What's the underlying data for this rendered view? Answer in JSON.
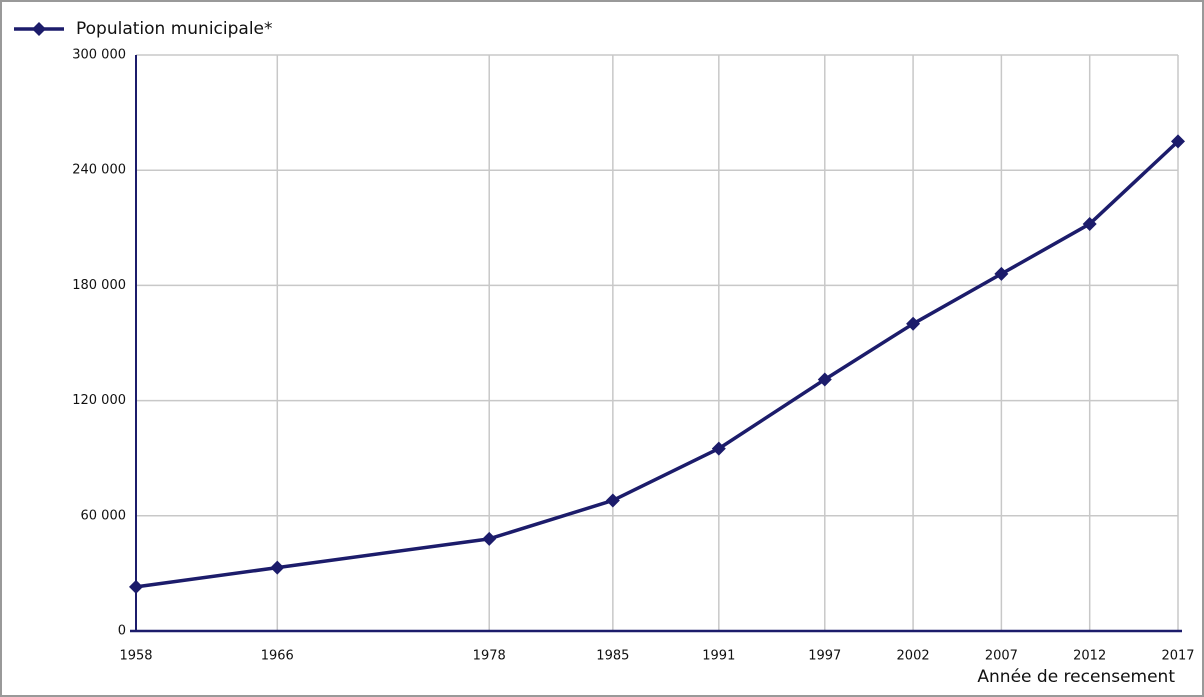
{
  "chart_data": {
    "type": "line",
    "x_label": "Année de recensement",
    "x": [
      1958,
      1966,
      1978,
      1985,
      1991,
      1997,
      2002,
      2007,
      2012,
      2017
    ],
    "series": [
      {
        "name": "Population municipale*",
        "color": "#1c1c6b",
        "values": [
          23000,
          33000,
          48000,
          68000,
          95000,
          131000,
          160000,
          186000,
          212000,
          255000
        ]
      }
    ],
    "xlim": [
      1958,
      2017
    ],
    "xticks": [
      1958,
      1966,
      1978,
      1985,
      1991,
      1997,
      2002,
      2007,
      2012,
      2017
    ],
    "ylim": [
      0,
      300000
    ],
    "yticks": [
      0,
      {
        "value": 60000,
        "label": "60 000"
      },
      {
        "value": 120000,
        "label": "120 000"
      },
      {
        "value": 180000,
        "label": "180 000"
      },
      {
        "value": 240000,
        "label": "240 000"
      },
      {
        "value": 300000,
        "label": "300 000"
      }
    ],
    "grid": true,
    "legend": "top-left"
  }
}
